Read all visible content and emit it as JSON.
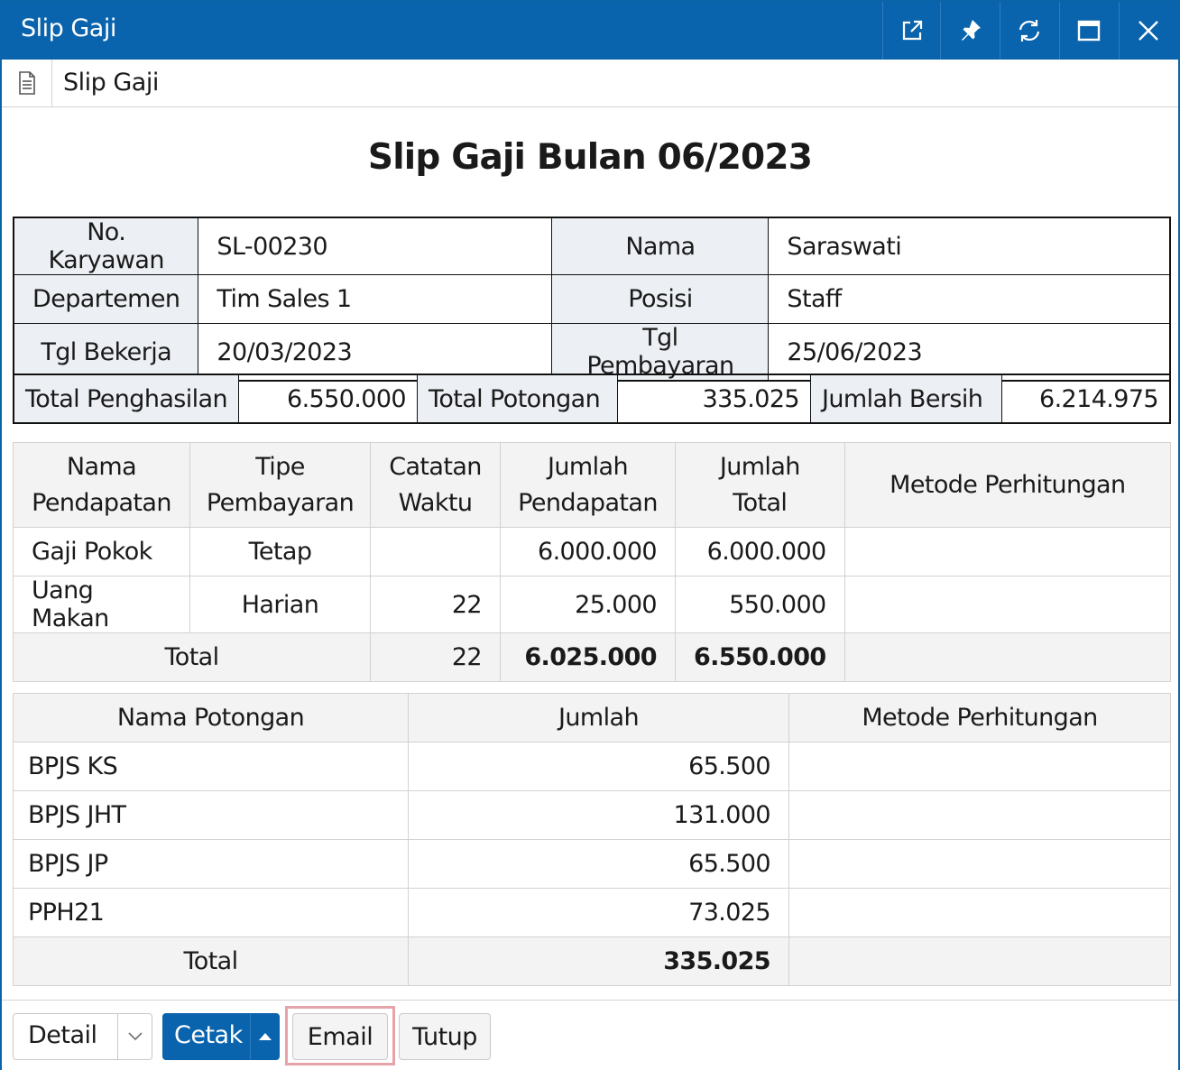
{
  "window": {
    "title": "Slip Gaji",
    "controls": [
      "external-link-icon",
      "pin-icon",
      "refresh-icon",
      "maximize-icon",
      "close-icon"
    ]
  },
  "tab": {
    "label": "Slip Gaji",
    "icon": "document-icon"
  },
  "heading": "Slip Gaji Bulan 06/2023",
  "employee": {
    "no_karyawan_label": "No. Karyawan",
    "no_karyawan": "SL-00230",
    "nama_label": "Nama",
    "nama": "Saraswati",
    "departemen_label": "Departemen",
    "departemen": "Tim Sales 1",
    "posisi_label": "Posisi",
    "posisi": "Staff",
    "tgl_bekerja_label": "Tgl Bekerja",
    "tgl_bekerja": "20/03/2023",
    "tgl_pembayaran_label": "Tgl Pembayaran",
    "tgl_pembayaran": "25/06/2023"
  },
  "summary": {
    "total_penghasilan_label": "Total Penghasilan",
    "total_penghasilan": "6.550.000",
    "total_potongan_label": "Total Potongan",
    "total_potongan": "335.025",
    "jumlah_bersih_label": "Jumlah Bersih",
    "jumlah_bersih": "6.214.975"
  },
  "earnings": {
    "headers": {
      "nama_1": "Nama",
      "nama_2": "Pendapatan",
      "tipe_1": "Tipe",
      "tipe_2": "Pembayaran",
      "catatan_1": "Catatan",
      "catatan_2": "Waktu",
      "jumlah_pend_1": "Jumlah",
      "jumlah_pend_2": "Pendapatan",
      "jumlah_total_1": "Jumlah",
      "jumlah_total_2": "Total",
      "metode": "Metode Perhitungan"
    },
    "rows": [
      {
        "nama": "Gaji Pokok",
        "tipe": "Tetap",
        "catatan": "",
        "jumlah_pendapatan": "6.000.000",
        "jumlah_total": "6.000.000",
        "metode": ""
      },
      {
        "nama": "Uang Makan",
        "tipe": "Harian",
        "catatan": "22",
        "jumlah_pendapatan": "25.000",
        "jumlah_total": "550.000",
        "metode": ""
      }
    ],
    "total": {
      "label": "Total",
      "catatan": "22",
      "jumlah_pendapatan": "6.025.000",
      "jumlah_total": "6.550.000"
    }
  },
  "deductions": {
    "headers": {
      "nama": "Nama Potongan",
      "jumlah": "Jumlah",
      "metode": "Metode Perhitungan"
    },
    "rows": [
      {
        "nama": "BPJS KS",
        "jumlah": "65.500",
        "metode": ""
      },
      {
        "nama": "BPJS JHT",
        "jumlah": "131.000",
        "metode": ""
      },
      {
        "nama": "BPJS JP",
        "jumlah": "65.500",
        "metode": ""
      },
      {
        "nama": "PPH21",
        "jumlah": "73.025",
        "metode": ""
      }
    ],
    "total": {
      "label": "Total",
      "jumlah": "335.025"
    }
  },
  "footer": {
    "detail_label": "Detail",
    "cetak_label": "Cetak",
    "email_label": "Email",
    "tutup_label": "Tutup"
  },
  "colors": {
    "accent": "#0a64ad",
    "label_bg": "#eceff3",
    "header_bg": "#f3f3f3",
    "focus": "#e6a3aa"
  }
}
